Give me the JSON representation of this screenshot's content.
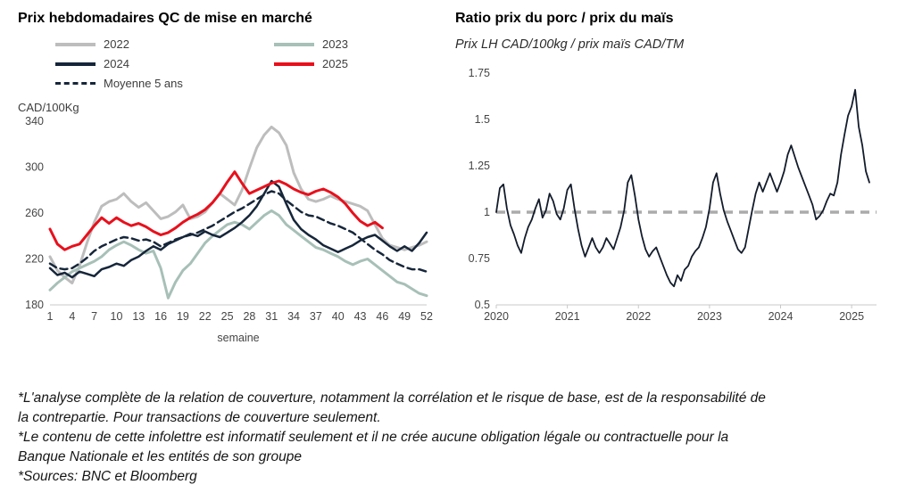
{
  "footnotes": [
    "*L'analyse complète de la relation de couverture, notamment la corrélation et le risque de base, est de la responsabilité de la contrepartie. Pour transactions de couverture seulement.",
    "*Le contenu de cette infolettre est informatif seulement et il ne crée aucune obligation légale ou contractuelle pour la Banque Nationale et les entités de son groupe",
    "*Sources: BNC et Bloomberg"
  ],
  "chart_data": [
    {
      "type": "line",
      "title": "Prix hebdomadaires QC de mise en marché",
      "ylabel": "CAD/100Kg",
      "xlabel": "semaine",
      "xlim": [
        1,
        52
      ],
      "ylim": [
        180,
        340
      ],
      "x_ticks": [
        1,
        4,
        7,
        10,
        13,
        16,
        19,
        22,
        25,
        28,
        31,
        34,
        37,
        40,
        43,
        46,
        49,
        52
      ],
      "y_ticks": [
        180,
        220,
        260,
        300,
        340
      ],
      "grid": false,
      "legend_position": "top",
      "legend": [
        "2022",
        "2023",
        "2024",
        "2025",
        "Moyenne 5 ans"
      ],
      "series": [
        {
          "name": "2022",
          "color": "#bdbdbd",
          "width": 3,
          "dash": null,
          "values": [
            222,
            210,
            204,
            199,
            214,
            234,
            252,
            266,
            270,
            272,
            277,
            270,
            265,
            269,
            262,
            255,
            257,
            261,
            267,
            255,
            257,
            261,
            269,
            277,
            272,
            267,
            280,
            299,
            317,
            328,
            335,
            330,
            319,
            295,
            281,
            272,
            270,
            272,
            275,
            272,
            270,
            268,
            266,
            262,
            250,
            238,
            232,
            230,
            228,
            230,
            232,
            235
          ]
        },
        {
          "name": "2023",
          "color": "#a7c0b8",
          "width": 3,
          "dash": null,
          "values": [
            193,
            199,
            204,
            209,
            212,
            215,
            218,
            222,
            228,
            232,
            235,
            232,
            228,
            225,
            227,
            212,
            186,
            200,
            210,
            216,
            225,
            234,
            240,
            245,
            250,
            252,
            250,
            246,
            252,
            258,
            262,
            258,
            250,
            245,
            240,
            235,
            230,
            228,
            225,
            222,
            218,
            215,
            218,
            220,
            215,
            210,
            205,
            200,
            198,
            194,
            190,
            188
          ]
        },
        {
          "name": "2024",
          "color": "#16263a",
          "width": 2.5,
          "dash": null,
          "values": [
            212,
            206,
            208,
            204,
            209,
            207,
            205,
            211,
            213,
            216,
            214,
            219,
            222,
            227,
            231,
            228,
            233,
            236,
            239,
            242,
            240,
            244,
            241,
            239,
            243,
            247,
            252,
            258,
            266,
            277,
            288,
            283,
            268,
            254,
            246,
            241,
            237,
            232,
            229,
            226,
            229,
            232,
            236,
            239,
            241,
            236,
            231,
            227,
            231,
            227,
            234,
            243
          ]
        },
        {
          "name": "2025",
          "color": "#e8101c",
          "width": 3,
          "dash": null,
          "values": [
            246,
            233,
            228,
            231,
            233,
            241,
            249,
            256,
            251,
            256,
            252,
            249,
            251,
            248,
            244,
            241,
            243,
            247,
            252,
            256,
            259,
            263,
            269,
            277,
            287,
            296,
            286,
            277,
            280,
            283,
            286,
            288,
            285,
            281,
            278,
            276,
            279,
            281,
            278,
            274,
            268,
            260,
            253,
            249,
            252,
            247
          ]
        },
        {
          "name": "Moyenne 5 ans",
          "color": "#16263a",
          "width": 2.5,
          "dash": "8,5",
          "values": [
            216,
            212,
            211,
            212,
            216,
            221,
            227,
            231,
            234,
            237,
            239,
            238,
            236,
            237,
            235,
            231,
            234,
            237,
            239,
            241,
            243,
            246,
            249,
            253,
            257,
            261,
            264,
            268,
            272,
            276,
            279,
            277,
            271,
            266,
            261,
            258,
            257,
            254,
            251,
            249,
            246,
            243,
            238,
            233,
            228,
            224,
            219,
            216,
            213,
            211,
            211,
            209
          ]
        }
      ]
    },
    {
      "type": "line",
      "title": "Ratio prix du porc / prix du maïs",
      "subtitle": "Prix LH CAD/100kg / prix maïs CAD/TM",
      "xlim": [
        2020,
        2025.35
      ],
      "ylim": [
        0.5,
        1.75
      ],
      "x_ticks": [
        2020,
        2021,
        2022,
        2023,
        2024,
        2025
      ],
      "y_ticks": [
        0.5,
        0.75,
        1,
        1.25,
        1.5,
        1.75
      ],
      "grid": false,
      "reference_line": {
        "y": 1,
        "color": "#ababab",
        "dash": "10,7",
        "width": 3.5
      },
      "series": [
        {
          "name": "ratio porc/maïs",
          "color": "#131c2b",
          "width": 1.8,
          "dash": null,
          "x_start": 2020,
          "x_step": 0.05,
          "y": [
            1.0,
            1.13,
            1.15,
            1.02,
            0.93,
            0.88,
            0.82,
            0.78,
            0.86,
            0.92,
            0.96,
            1.02,
            1.07,
            0.97,
            1.01,
            1.1,
            1.06,
            0.99,
            0.96,
            1.02,
            1.12,
            1.15,
            1.02,
            0.91,
            0.82,
            0.76,
            0.81,
            0.86,
            0.81,
            0.78,
            0.81,
            0.86,
            0.83,
            0.8,
            0.86,
            0.92,
            1.01,
            1.16,
            1.2,
            1.09,
            0.96,
            0.87,
            0.8,
            0.76,
            0.79,
            0.81,
            0.76,
            0.71,
            0.66,
            0.62,
            0.6,
            0.66,
            0.63,
            0.69,
            0.71,
            0.76,
            0.79,
            0.81,
            0.86,
            0.92,
            1.02,
            1.16,
            1.21,
            1.1,
            1.01,
            0.95,
            0.9,
            0.85,
            0.8,
            0.78,
            0.81,
            0.91,
            1.01,
            1.1,
            1.16,
            1.11,
            1.16,
            1.21,
            1.16,
            1.11,
            1.16,
            1.22,
            1.31,
            1.36,
            1.3,
            1.24,
            1.19,
            1.14,
            1.09,
            1.04,
            0.96,
            0.98,
            1.01,
            1.06,
            1.1,
            1.09,
            1.16,
            1.31,
            1.42,
            1.52,
            1.57,
            1.66,
            1.46,
            1.36,
            1.22,
            1.16
          ]
        }
      ]
    }
  ]
}
